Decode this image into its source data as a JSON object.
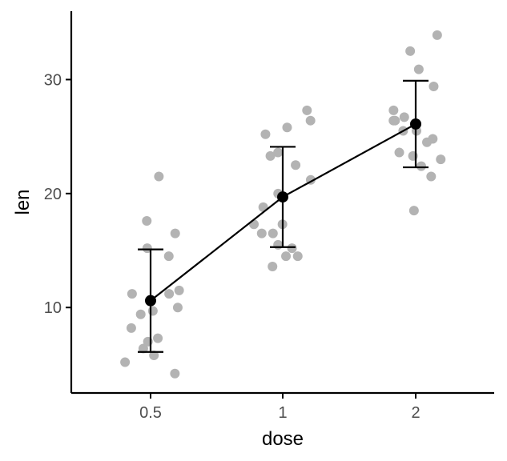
{
  "chart_data": {
    "type": "scatter",
    "title": "",
    "xlabel": "dose",
    "ylabel": "len",
    "x_categories": [
      "0.5",
      "1",
      "2"
    ],
    "y_ticks": [
      10,
      20,
      30
    ],
    "ylim": [
      2.5,
      36
    ],
    "grid": false,
    "legend": "none",
    "colors": {
      "points": "#b3b3b3",
      "summary": "#000000",
      "axis": "#000000",
      "tick_text": "#4d4d4d"
    },
    "points": [
      {
        "dose": "0.5",
        "len": 4.2
      },
      {
        "dose": "0.5",
        "len": 5.2
      },
      {
        "dose": "0.5",
        "len": 5.8
      },
      {
        "dose": "0.5",
        "len": 6.4
      },
      {
        "dose": "0.5",
        "len": 7.0
      },
      {
        "dose": "0.5",
        "len": 7.3
      },
      {
        "dose": "0.5",
        "len": 8.2
      },
      {
        "dose": "0.5",
        "len": 9.4
      },
      {
        "dose": "0.5",
        "len": 9.7
      },
      {
        "dose": "0.5",
        "len": 10.0
      },
      {
        "dose": "0.5",
        "len": 11.2
      },
      {
        "dose": "0.5",
        "len": 11.2
      },
      {
        "dose": "0.5",
        "len": 11.5
      },
      {
        "dose": "0.5",
        "len": 14.5
      },
      {
        "dose": "0.5",
        "len": 15.2
      },
      {
        "dose": "0.5",
        "len": 16.5
      },
      {
        "dose": "0.5",
        "len": 17.6
      },
      {
        "dose": "0.5",
        "len": 21.5
      },
      {
        "dose": "1",
        "len": 13.6
      },
      {
        "dose": "1",
        "len": 14.5
      },
      {
        "dose": "1",
        "len": 14.5
      },
      {
        "dose": "1",
        "len": 15.2
      },
      {
        "dose": "1",
        "len": 15.5
      },
      {
        "dose": "1",
        "len": 16.5
      },
      {
        "dose": "1",
        "len": 16.5
      },
      {
        "dose": "1",
        "len": 17.3
      },
      {
        "dose": "1",
        "len": 17.3
      },
      {
        "dose": "1",
        "len": 18.8
      },
      {
        "dose": "1",
        "len": 20.0
      },
      {
        "dose": "1",
        "len": 21.2
      },
      {
        "dose": "1",
        "len": 22.5
      },
      {
        "dose": "1",
        "len": 23.3
      },
      {
        "dose": "1",
        "len": 23.6
      },
      {
        "dose": "1",
        "len": 25.2
      },
      {
        "dose": "1",
        "len": 25.8
      },
      {
        "dose": "1",
        "len": 26.4
      },
      {
        "dose": "1",
        "len": 27.3
      },
      {
        "dose": "2",
        "len": 18.5
      },
      {
        "dose": "2",
        "len": 21.5
      },
      {
        "dose": "2",
        "len": 22.4
      },
      {
        "dose": "2",
        "len": 23.0
      },
      {
        "dose": "2",
        "len": 23.3
      },
      {
        "dose": "2",
        "len": 23.6
      },
      {
        "dose": "2",
        "len": 24.5
      },
      {
        "dose": "2",
        "len": 24.8
      },
      {
        "dose": "2",
        "len": 25.5
      },
      {
        "dose": "2",
        "len": 25.5
      },
      {
        "dose": "2",
        "len": 26.4
      },
      {
        "dose": "2",
        "len": 26.4
      },
      {
        "dose": "2",
        "len": 26.7
      },
      {
        "dose": "2",
        "len": 27.3
      },
      {
        "dose": "2",
        "len": 29.4
      },
      {
        "dose": "2",
        "len": 30.9
      },
      {
        "dose": "2",
        "len": 32.5
      },
      {
        "dose": "2",
        "len": 33.9
      }
    ],
    "summary": {
      "x": [
        "0.5",
        "1",
        "2"
      ],
      "mean": [
        10.6,
        19.7,
        26.1
      ],
      "lower": [
        6.1,
        15.3,
        22.3
      ],
      "upper": [
        15.1,
        24.1,
        29.9
      ]
    }
  }
}
